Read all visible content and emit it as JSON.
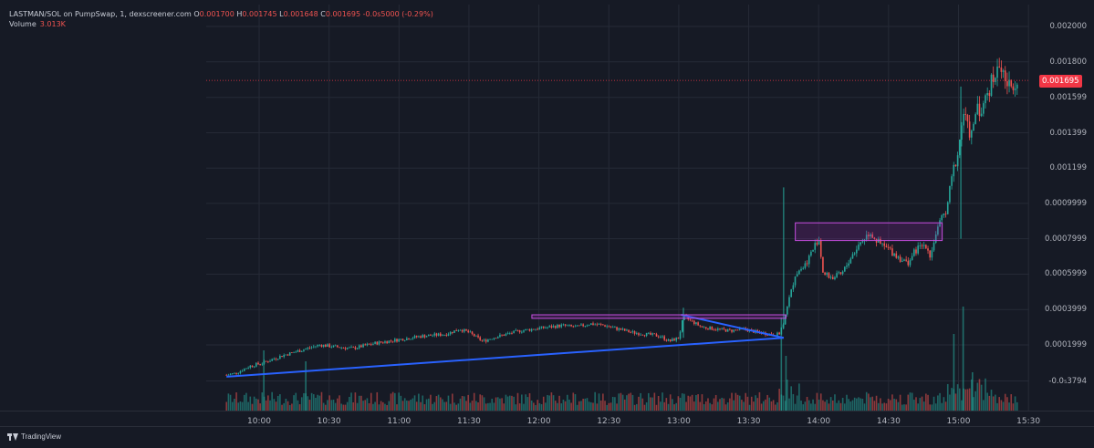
{
  "header": {
    "pair": "LASTMAN/SOL on PumpSwap, 1, dexscreener.com",
    "o_label": "O",
    "o_value": "0.001700",
    "h_label": "H",
    "h_value": "0.001745",
    "l_label": "L",
    "l_value": "0.001648",
    "c_label": "C",
    "c_value": "0.001695",
    "change": "-0.0s5000 (-0.29%)",
    "volume_label": "Volume",
    "volume_value": "3.013K"
  },
  "chart_data": {
    "type": "candlestick",
    "last_price": 0.001695,
    "last_price_label": "0.001695",
    "y_ticks": [
      {
        "label": "0.002000",
        "value": 0.002
      },
      {
        "label": "0.001800",
        "value": 0.0018
      },
      {
        "label": "0.001599",
        "value": 0.001599
      },
      {
        "label": "0.001399",
        "value": 0.001399
      },
      {
        "label": "0.001199",
        "value": 0.001199
      },
      {
        "label": "0.0009999",
        "value": 0.0009999
      },
      {
        "label": "0.0007999",
        "value": 0.0007999
      },
      {
        "label": "0.0005999",
        "value": 0.0005999
      },
      {
        "label": "0.0003999",
        "value": 0.0003999
      },
      {
        "label": "0.0001999",
        "value": 0.0001999
      },
      {
        "label": "-0.0₅3794",
        "value": -3.8e-06
      }
    ],
    "x_ticks": [
      {
        "label": "10:00",
        "minutes": 600
      },
      {
        "label": "10:30",
        "minutes": 630
      },
      {
        "label": "11:00",
        "minutes": 660
      },
      {
        "label": "11:30",
        "minutes": 690
      },
      {
        "label": "12:00",
        "minutes": 720
      },
      {
        "label": "12:30",
        "minutes": 750
      },
      {
        "label": "13:00",
        "minutes": 780
      },
      {
        "label": "13:30",
        "minutes": 810
      },
      {
        "label": "14:00",
        "minutes": 840
      },
      {
        "label": "14:30",
        "minutes": 870
      },
      {
        "label": "15:00",
        "minutes": 900
      },
      {
        "label": "15:30",
        "minutes": 930
      }
    ],
    "price_path": [
      [
        586,
        3e-05
      ],
      [
        590,
        4e-05
      ],
      [
        596,
        8e-05
      ],
      [
        602,
        0.0001
      ],
      [
        610,
        0.00014
      ],
      [
        618,
        0.00017
      ],
      [
        626,
        0.0002
      ],
      [
        632,
        0.00019
      ],
      [
        640,
        0.00018
      ],
      [
        650,
        0.00021
      ],
      [
        660,
        0.00023
      ],
      [
        670,
        0.00025
      ],
      [
        680,
        0.00026
      ],
      [
        686,
        0.00029
      ],
      [
        690,
        0.00027
      ],
      [
        696,
        0.00022
      ],
      [
        700,
        0.00024
      ],
      [
        706,
        0.00026
      ],
      [
        712,
        0.00028
      ],
      [
        718,
        0.00029
      ],
      [
        724,
        0.0003
      ],
      [
        730,
        0.00031
      ],
      [
        736,
        0.0003
      ],
      [
        742,
        0.00032
      ],
      [
        748,
        0.00031
      ],
      [
        754,
        0.00029
      ],
      [
        760,
        0.00027
      ],
      [
        766,
        0.00026
      ],
      [
        772,
        0.00025
      ],
      [
        776,
        0.00022
      ],
      [
        780,
        0.00024
      ],
      [
        782,
        0.00036
      ],
      [
        786,
        0.00033
      ],
      [
        790,
        0.0003
      ],
      [
        796,
        0.00029
      ],
      [
        802,
        0.00028
      ],
      [
        808,
        0.00029
      ],
      [
        814,
        0.00027
      ],
      [
        820,
        0.00026
      ],
      [
        823,
        0.00026
      ],
      [
        825,
        0.00033
      ],
      [
        826,
        0.0004
      ],
      [
        828,
        0.00049
      ],
      [
        830,
        0.0006
      ],
      [
        834,
        0.00065
      ],
      [
        838,
        0.00075
      ],
      [
        840,
        0.00081
      ],
      [
        842,
        0.0006
      ],
      [
        846,
        0.00058
      ],
      [
        850,
        0.0006
      ],
      [
        854,
        0.0007
      ],
      [
        858,
        0.00078
      ],
      [
        862,
        0.00084
      ],
      [
        866,
        0.00077
      ],
      [
        870,
        0.00074
      ],
      [
        874,
        0.0007
      ],
      [
        878,
        0.00066
      ],
      [
        882,
        0.00074
      ],
      [
        886,
        0.00077
      ],
      [
        888,
        0.0007
      ],
      [
        890,
        0.00082
      ],
      [
        892,
        0.00088
      ],
      [
        895,
        0.00098
      ],
      [
        898,
        0.0012
      ],
      [
        900,
        0.0013
      ],
      [
        902,
        0.00152
      ],
      [
        904,
        0.00142
      ],
      [
        906,
        0.00138
      ],
      [
        908,
        0.00158
      ],
      [
        910,
        0.0015
      ],
      [
        912,
        0.00162
      ],
      [
        914,
        0.00168
      ],
      [
        916,
        0.00175
      ],
      [
        918,
        0.00178
      ],
      [
        920,
        0.0017
      ],
      [
        922,
        0.00165
      ],
      [
        924,
        0.0017
      ],
      [
        926,
        0.001695
      ]
    ],
    "volume_spikes": [
      {
        "minutes": 602,
        "volume": 0.55
      },
      {
        "minutes": 620,
        "volume": 0.45
      },
      {
        "minutes": 824,
        "volume": 0.85
      },
      {
        "minutes": 826,
        "volume": 0.5
      },
      {
        "minutes": 898,
        "volume": 0.7
      },
      {
        "minutes": 902,
        "volume": 0.95
      },
      {
        "minutes": 906,
        "volume": 0.35
      }
    ],
    "drawings": [
      {
        "type": "trendline",
        "color": "#2962ff",
        "from": [
          586,
          2e-05
        ],
        "to": [
          825,
          0.00024
        ]
      },
      {
        "type": "trendline",
        "color": "#2962ff",
        "from": [
          781,
          0.00037
        ],
        "to": [
          825,
          0.00024
        ]
      },
      {
        "type": "rectangle",
        "color": "#9c27b0",
        "from": [
          717,
          0.00037
        ],
        "to": [
          826,
          0.00035
        ]
      },
      {
        "type": "rectangle",
        "color": "#9c27b0",
        "from": [
          830,
          0.00089
        ],
        "to": [
          893,
          0.00079
        ]
      }
    ],
    "colors": {
      "up": "#26a69a",
      "down": "#ef5350",
      "background": "#161a25",
      "grid": "#252a36"
    }
  },
  "branding": {
    "label": "TradingView"
  }
}
